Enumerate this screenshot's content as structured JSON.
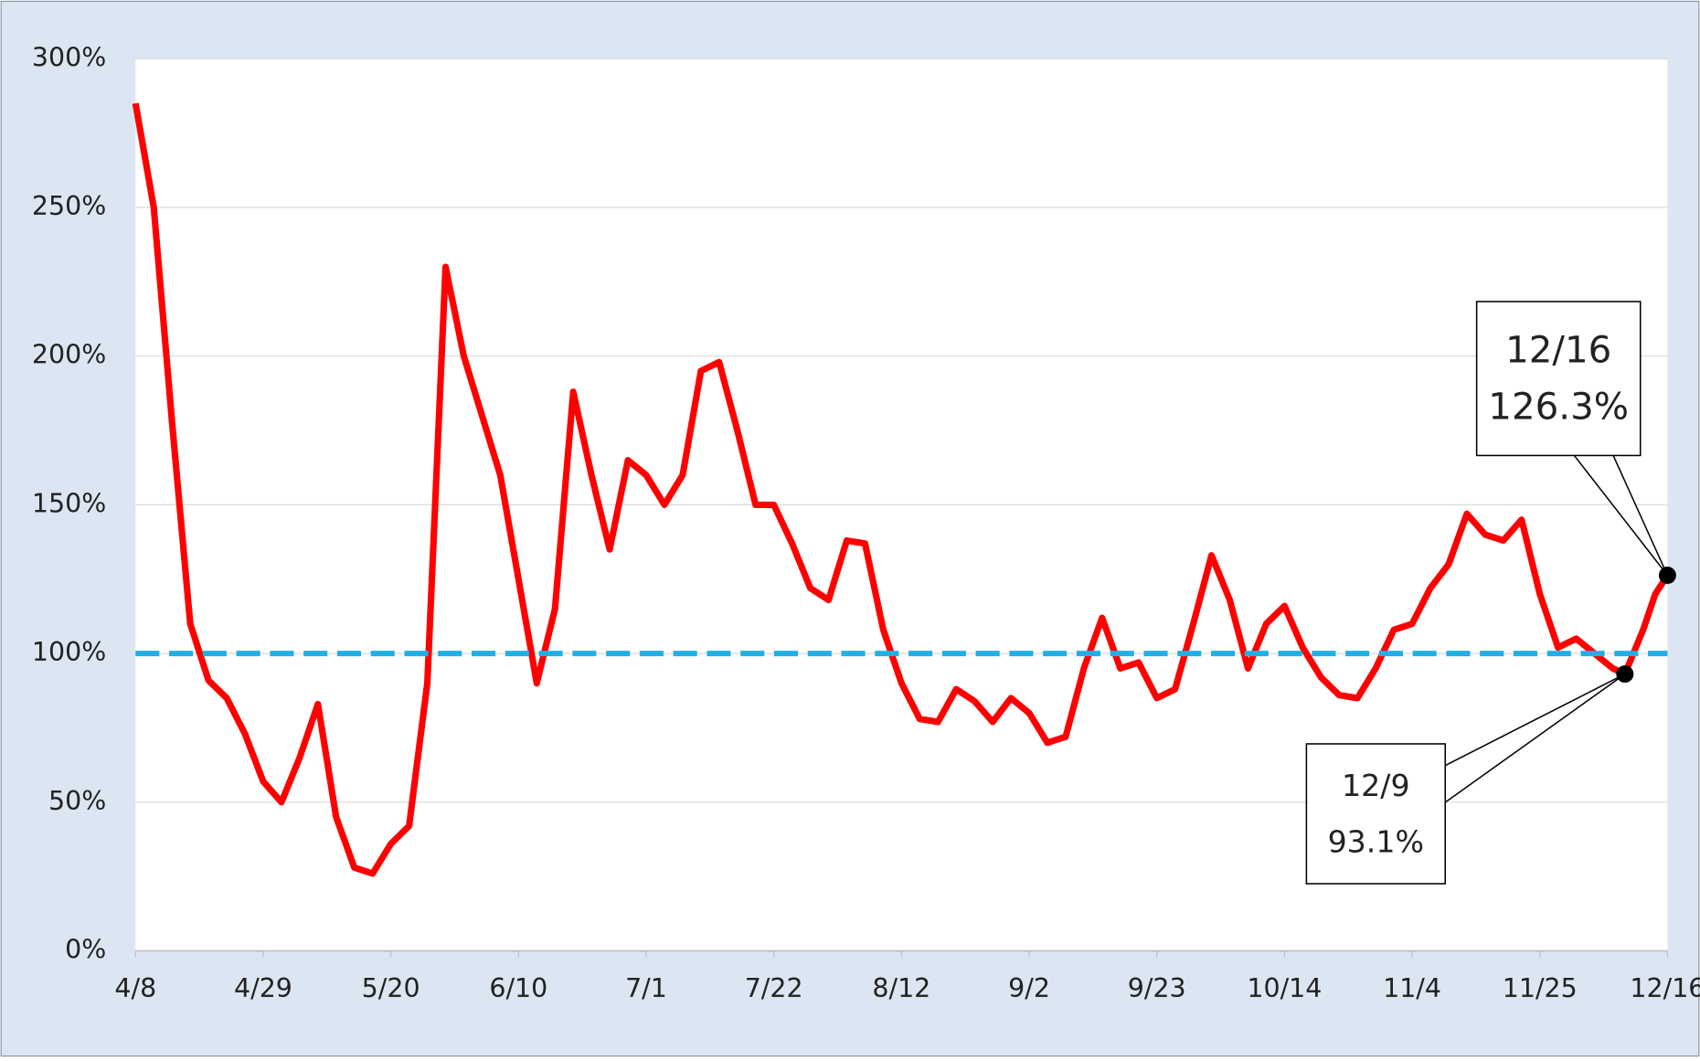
{
  "chart_data": {
    "type": "line",
    "x": [
      0,
      3,
      6,
      9,
      12,
      15,
      18,
      21,
      24,
      27,
      30,
      33,
      36,
      39,
      42,
      45,
      48,
      51,
      54,
      57,
      60,
      63,
      66,
      69,
      72,
      75,
      78,
      81,
      84,
      87,
      90,
      93,
      96,
      99,
      102,
      105,
      108,
      111,
      114,
      117,
      120,
      123,
      126,
      129,
      132,
      135,
      138,
      141,
      144,
      147,
      150,
      153,
      156,
      159,
      162,
      165,
      168,
      171,
      174,
      177,
      180,
      183,
      186,
      189,
      192,
      195,
      198,
      201,
      204,
      207,
      210,
      213,
      216,
      219,
      222,
      225,
      228,
      231,
      234,
      237,
      240,
      243,
      245,
      248,
      250,
      252
    ],
    "series": [
      {
        "color": "#ff0000",
        "values": [
          285,
          250,
          178,
          110,
          91,
          85,
          73,
          57,
          50,
          65,
          83,
          45,
          28,
          26,
          36,
          42,
          90,
          230,
          200,
          180,
          160,
          125,
          90,
          115,
          188,
          160,
          135,
          165,
          160,
          150,
          160,
          195,
          198,
          175,
          150,
          150,
          137,
          122,
          118,
          138,
          137,
          108,
          90,
          78,
          77,
          88,
          84,
          77,
          85,
          80,
          70,
          72,
          95,
          112,
          95,
          97,
          85,
          88,
          110,
          133,
          118,
          95,
          110,
          116,
          102,
          92,
          86,
          85,
          95,
          108,
          110,
          122,
          130,
          147,
          140,
          138,
          145,
          120,
          102,
          105,
          100,
          95,
          93.1,
          108,
          120,
          126.3
        ]
      }
    ],
    "xlim": [
      0,
      252
    ],
    "xticks": [
      {
        "value": 0,
        "label": "4/8"
      },
      {
        "value": 21,
        "label": "4/29"
      },
      {
        "value": 42,
        "label": "5/20"
      },
      {
        "value": 63,
        "label": "6/10"
      },
      {
        "value": 84,
        "label": "7/1"
      },
      {
        "value": 105,
        "label": "7/22"
      },
      {
        "value": 126,
        "label": "8/12"
      },
      {
        "value": 147,
        "label": "9/2"
      },
      {
        "value": 168,
        "label": "9/23"
      },
      {
        "value": 189,
        "label": "10/14"
      },
      {
        "value": 210,
        "label": "11/4"
      },
      {
        "value": 231,
        "label": "11/25"
      },
      {
        "value": 252,
        "label": "12/16"
      }
    ],
    "ylim": [
      0,
      300
    ],
    "yticks": [
      {
        "value": 0,
        "label": "0%"
      },
      {
        "value": 50,
        "label": "50%"
      },
      {
        "value": 100,
        "label": "100%"
      },
      {
        "value": 150,
        "label": "150%"
      },
      {
        "value": 200,
        "label": "200%"
      },
      {
        "value": 250,
        "label": "250%"
      },
      {
        "value": 300,
        "label": "300%"
      }
    ],
    "grid": true,
    "reference_line": {
      "value": 100,
      "color": "#1fb0e6"
    },
    "annotations": [
      {
        "x": 252,
        "date": "12/16",
        "value": 126.3,
        "value_label": "126.3%"
      },
      {
        "x": 245,
        "date": "12/9",
        "value": 93.1,
        "value_label": "93.1%"
      }
    ]
  }
}
